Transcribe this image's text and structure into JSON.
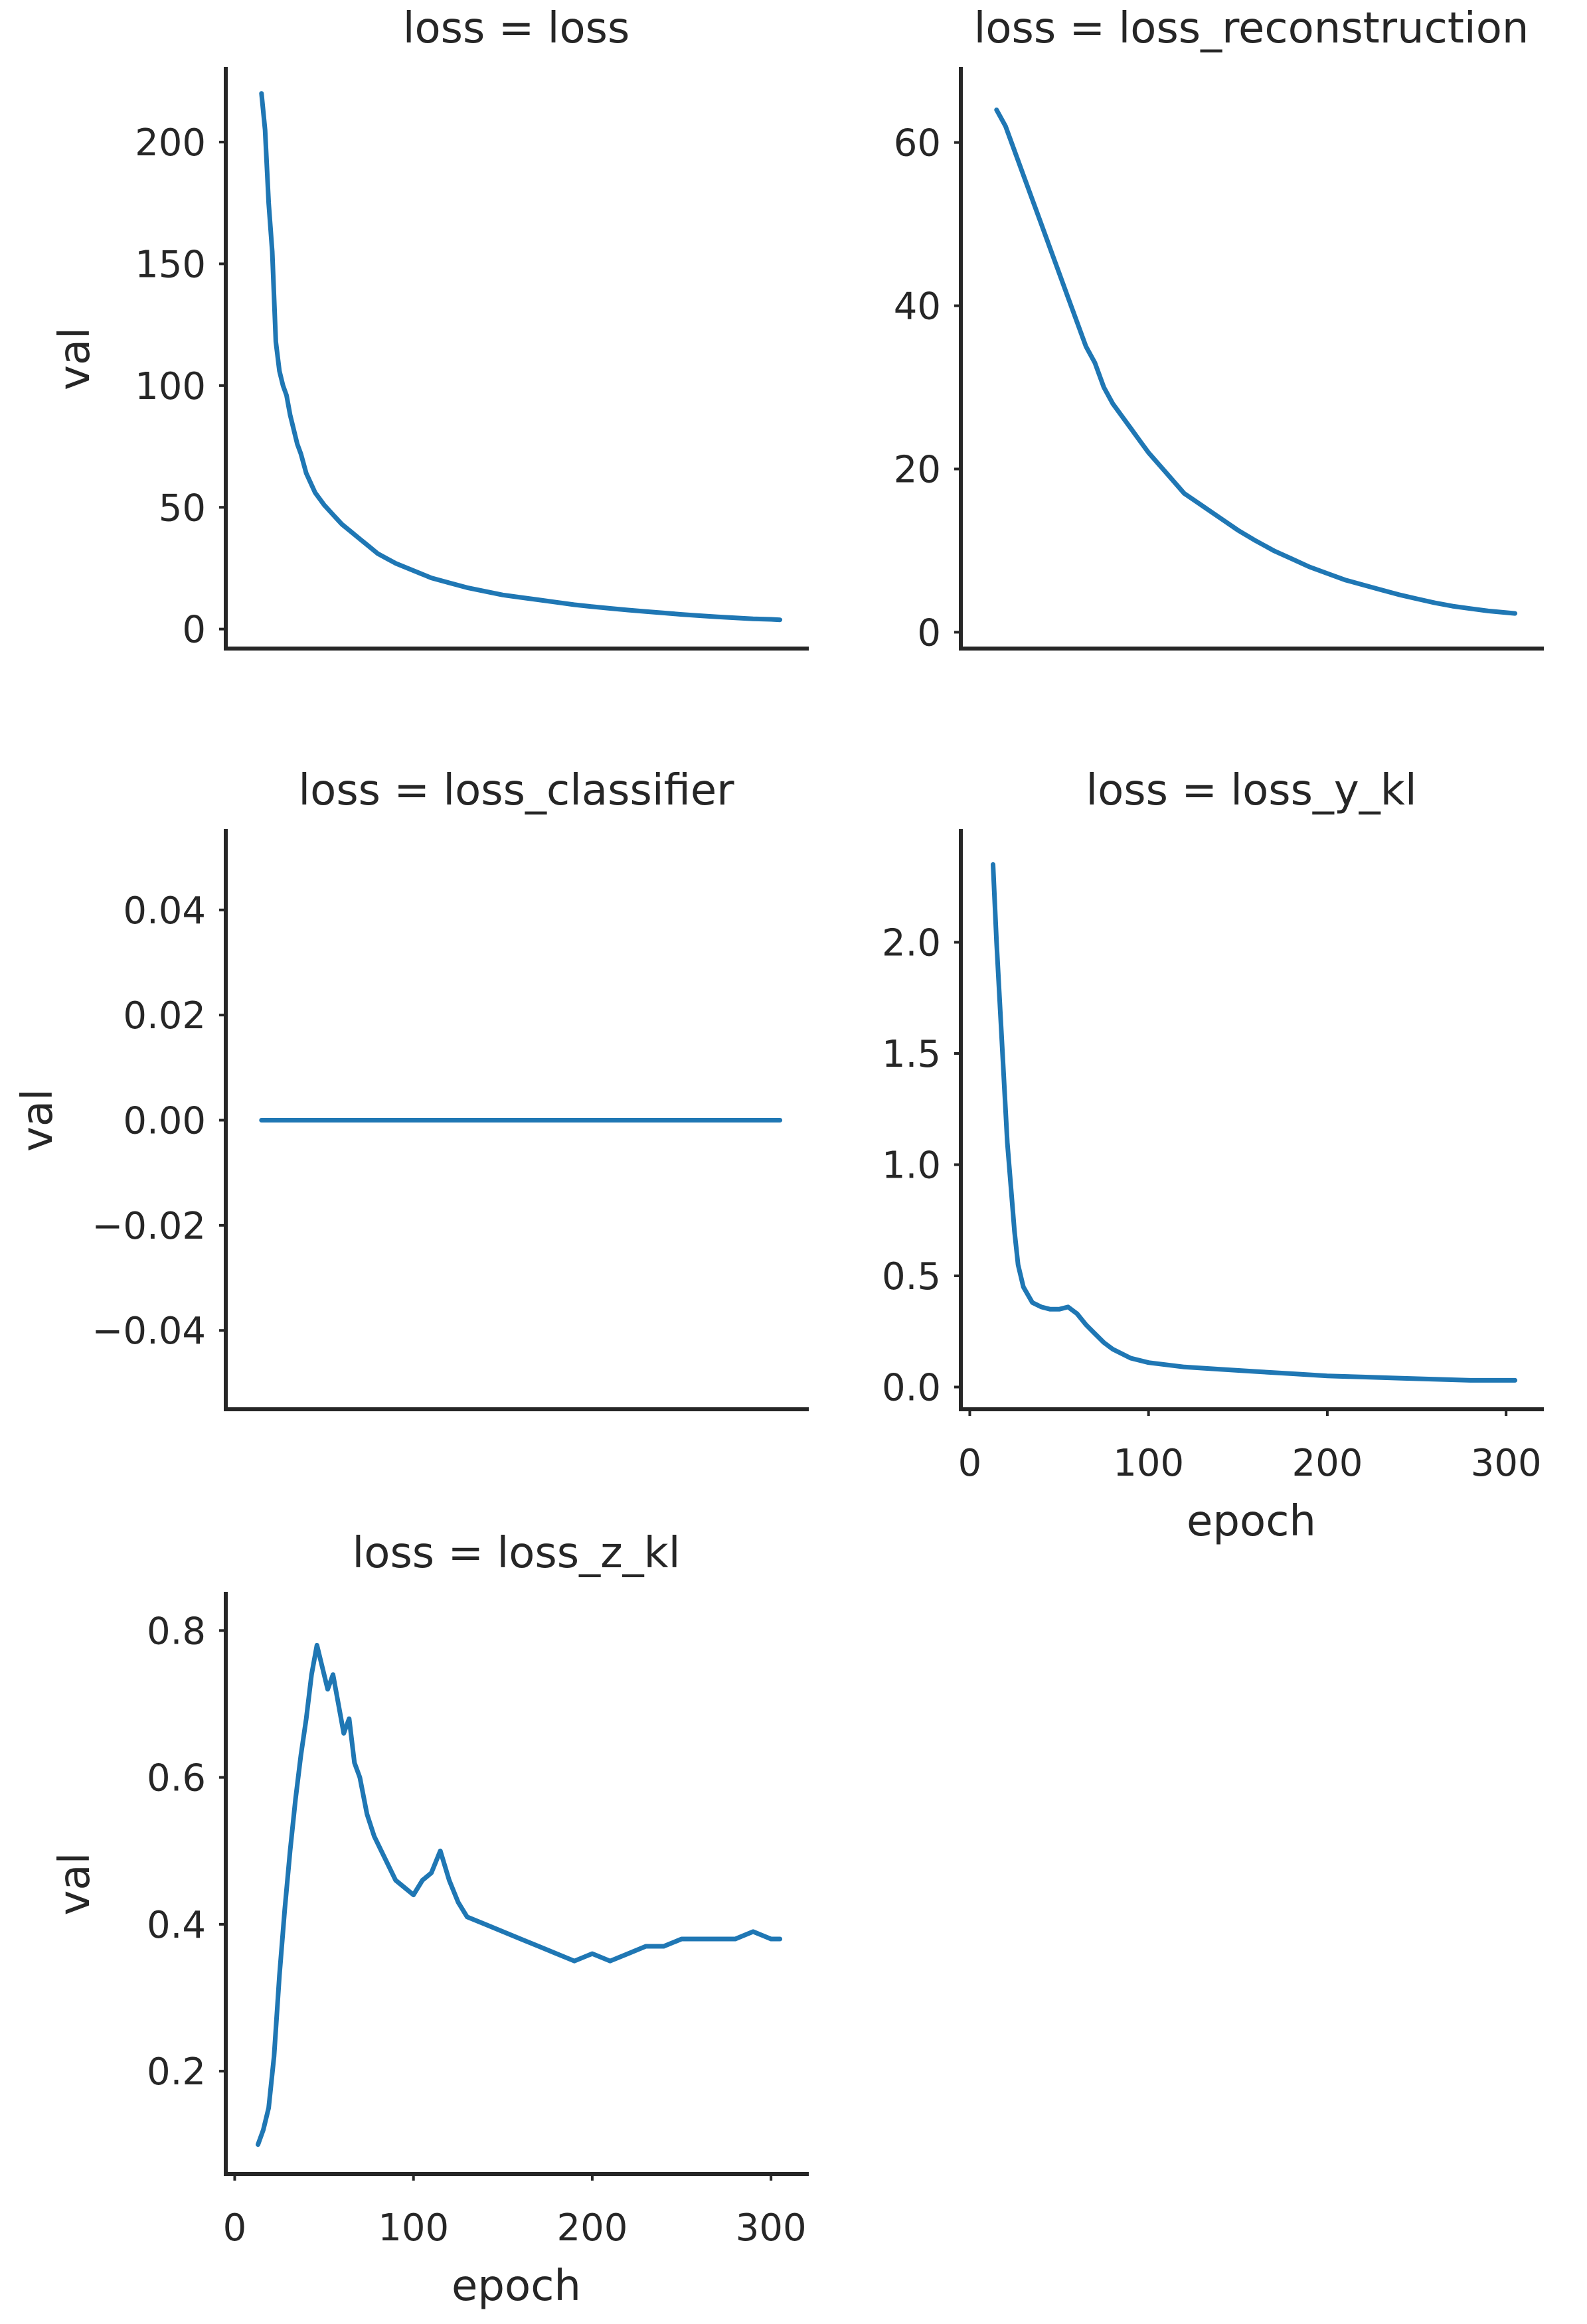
{
  "chart_data": [
    {
      "type": "line",
      "title": "loss = loss",
      "xlabel": "",
      "ylabel": "val",
      "xlim": [
        -5,
        320
      ],
      "ylim": [
        -8,
        230
      ],
      "xticks": [],
      "yticks": [
        0,
        50,
        100,
        150,
        200
      ],
      "ytick_labels": [
        "0",
        "50",
        "100",
        "150",
        "200"
      ],
      "series_color": "#1f77b4",
      "series": [
        {
          "points": [
            [
              15,
              220
            ],
            [
              17,
              205
            ],
            [
              19,
              175
            ],
            [
              21,
              155
            ],
            [
              23,
              118
            ],
            [
              25,
              106
            ],
            [
              27,
              100
            ],
            [
              29,
              96
            ],
            [
              31,
              88
            ],
            [
              33,
              82
            ],
            [
              35,
              76
            ],
            [
              37,
              72
            ],
            [
              40,
              64
            ],
            [
              45,
              56
            ],
            [
              50,
              51
            ],
            [
              55,
              47
            ],
            [
              60,
              43
            ],
            [
              65,
              40
            ],
            [
              70,
              37
            ],
            [
              75,
              34
            ],
            [
              80,
              31
            ],
            [
              85,
              29
            ],
            [
              90,
              27
            ],
            [
              100,
              24
            ],
            [
              110,
              21
            ],
            [
              120,
              19
            ],
            [
              130,
              17
            ],
            [
              140,
              15.5
            ],
            [
              150,
              14
            ],
            [
              160,
              13
            ],
            [
              170,
              12
            ],
            [
              180,
              11
            ],
            [
              190,
              10
            ],
            [
              200,
              9.2
            ],
            [
              210,
              8.5
            ],
            [
              220,
              7.8
            ],
            [
              230,
              7.2
            ],
            [
              240,
              6.6
            ],
            [
              250,
              6
            ],
            [
              260,
              5.5
            ],
            [
              270,
              5
            ],
            [
              280,
              4.6
            ],
            [
              290,
              4.2
            ],
            [
              300,
              4
            ],
            [
              305,
              3.8
            ]
          ]
        }
      ]
    },
    {
      "type": "line",
      "title": "loss = loss_reconstruction",
      "xlabel": "",
      "ylabel": "",
      "xlim": [
        -5,
        320
      ],
      "ylim": [
        -2,
        69
      ],
      "xticks": [],
      "yticks": [
        0,
        20,
        40,
        60
      ],
      "ytick_labels": [
        "0",
        "20",
        "40",
        "60"
      ],
      "series_color": "#1f77b4",
      "series": [
        {
          "points": [
            [
              15,
              64
            ],
            [
              20,
              62
            ],
            [
              25,
              59
            ],
            [
              30,
              56
            ],
            [
              35,
              53
            ],
            [
              40,
              50
            ],
            [
              45,
              47
            ],
            [
              50,
              44
            ],
            [
              55,
              41
            ],
            [
              60,
              38
            ],
            [
              65,
              35
            ],
            [
              70,
              33
            ],
            [
              75,
              30
            ],
            [
              80,
              28
            ],
            [
              85,
              26.5
            ],
            [
              90,
              25
            ],
            [
              95,
              23.5
            ],
            [
              100,
              22
            ],
            [
              110,
              19.5
            ],
            [
              120,
              17
            ],
            [
              130,
              15.5
            ],
            [
              140,
              14
            ],
            [
              150,
              12.5
            ],
            [
              160,
              11.2
            ],
            [
              170,
              10
            ],
            [
              180,
              9
            ],
            [
              190,
              8
            ],
            [
              200,
              7.2
            ],
            [
              210,
              6.4
            ],
            [
              220,
              5.8
            ],
            [
              230,
              5.2
            ],
            [
              240,
              4.6
            ],
            [
              250,
              4.1
            ],
            [
              260,
              3.6
            ],
            [
              270,
              3.2
            ],
            [
              280,
              2.9
            ],
            [
              290,
              2.6
            ],
            [
              300,
              2.4
            ],
            [
              305,
              2.3
            ]
          ]
        }
      ]
    },
    {
      "type": "line",
      "title": "loss = loss_classifier",
      "xlabel": "",
      "ylabel": "val",
      "xlim": [
        -5,
        320
      ],
      "ylim": [
        -0.055,
        0.055
      ],
      "xticks": [],
      "yticks": [
        -0.04,
        -0.02,
        0,
        0.02,
        0.04
      ],
      "ytick_labels": [
        "−0.04",
        "−0.02",
        "0.00",
        "0.02",
        "0.04"
      ],
      "series_color": "#1f77b4",
      "series": [
        {
          "points": [
            [
              15,
              0
            ],
            [
              305,
              0
            ]
          ]
        }
      ]
    },
    {
      "type": "line",
      "title": "loss = loss_y_kl",
      "xlabel": "epoch",
      "ylabel": "",
      "xlim": [
        -5,
        320
      ],
      "ylim": [
        -0.1,
        2.5
      ],
      "xticks": [
        0,
        100,
        200,
        300
      ],
      "xtick_labels": [
        "0",
        "100",
        "200",
        "300"
      ],
      "yticks": [
        0,
        0.5,
        1,
        1.5,
        2
      ],
      "ytick_labels": [
        "0.0",
        "0.5",
        "1.0",
        "1.5",
        "2.0"
      ],
      "series_color": "#1f77b4",
      "series": [
        {
          "points": [
            [
              13,
              2.35
            ],
            [
              15,
              2.0
            ],
            [
              17,
              1.7
            ],
            [
              19,
              1.4
            ],
            [
              21,
              1.1
            ],
            [
              23,
              0.9
            ],
            [
              25,
              0.7
            ],
            [
              27,
              0.55
            ],
            [
              30,
              0.45
            ],
            [
              35,
              0.38
            ],
            [
              40,
              0.36
            ],
            [
              45,
              0.35
            ],
            [
              50,
              0.35
            ],
            [
              55,
              0.36
            ],
            [
              60,
              0.33
            ],
            [
              65,
              0.28
            ],
            [
              70,
              0.24
            ],
            [
              75,
              0.2
            ],
            [
              80,
              0.17
            ],
            [
              90,
              0.13
            ],
            [
              100,
              0.11
            ],
            [
              120,
              0.09
            ],
            [
              140,
              0.08
            ],
            [
              160,
              0.07
            ],
            [
              180,
              0.06
            ],
            [
              200,
              0.05
            ],
            [
              220,
              0.045
            ],
            [
              240,
              0.04
            ],
            [
              260,
              0.035
            ],
            [
              280,
              0.03
            ],
            [
              305,
              0.03
            ]
          ]
        }
      ]
    },
    {
      "type": "line",
      "title": "loss = loss_z_kl",
      "xlabel": "epoch",
      "ylabel": "val",
      "xlim": [
        -5,
        320
      ],
      "ylim": [
        0.06,
        0.85
      ],
      "xticks": [
        0,
        100,
        200,
        300
      ],
      "xtick_labels": [
        "0",
        "100",
        "200",
        "300"
      ],
      "yticks": [
        0.2,
        0.4,
        0.6,
        0.8
      ],
      "ytick_labels": [
        "0.2",
        "0.4",
        "0.6",
        "0.8"
      ],
      "series_color": "#1f77b4",
      "series": [
        {
          "points": [
            [
              13,
              0.1
            ],
            [
              16,
              0.12
            ],
            [
              19,
              0.15
            ],
            [
              22,
              0.22
            ],
            [
              25,
              0.33
            ],
            [
              28,
              0.42
            ],
            [
              31,
              0.5
            ],
            [
              34,
              0.57
            ],
            [
              37,
              0.63
            ],
            [
              40,
              0.68
            ],
            [
              43,
              0.74
            ],
            [
              46,
              0.78
            ],
            [
              49,
              0.75
            ],
            [
              52,
              0.72
            ],
            [
              55,
              0.74
            ],
            [
              58,
              0.7
            ],
            [
              61,
              0.66
            ],
            [
              64,
              0.68
            ],
            [
              67,
              0.62
            ],
            [
              70,
              0.6
            ],
            [
              74,
              0.55
            ],
            [
              78,
              0.52
            ],
            [
              82,
              0.5
            ],
            [
              86,
              0.48
            ],
            [
              90,
              0.46
            ],
            [
              95,
              0.45
            ],
            [
              100,
              0.44
            ],
            [
              105,
              0.46
            ],
            [
              110,
              0.47
            ],
            [
              115,
              0.5
            ],
            [
              120,
              0.46
            ],
            [
              125,
              0.43
            ],
            [
              130,
              0.41
            ],
            [
              140,
              0.4
            ],
            [
              150,
              0.39
            ],
            [
              160,
              0.38
            ],
            [
              170,
              0.37
            ],
            [
              180,
              0.36
            ],
            [
              190,
              0.35
            ],
            [
              200,
              0.36
            ],
            [
              210,
              0.35
            ],
            [
              220,
              0.36
            ],
            [
              230,
              0.37
            ],
            [
              240,
              0.37
            ],
            [
              250,
              0.38
            ],
            [
              260,
              0.38
            ],
            [
              270,
              0.38
            ],
            [
              280,
              0.38
            ],
            [
              290,
              0.39
            ],
            [
              300,
              0.38
            ],
            [
              305,
              0.38
            ]
          ]
        }
      ]
    }
  ]
}
